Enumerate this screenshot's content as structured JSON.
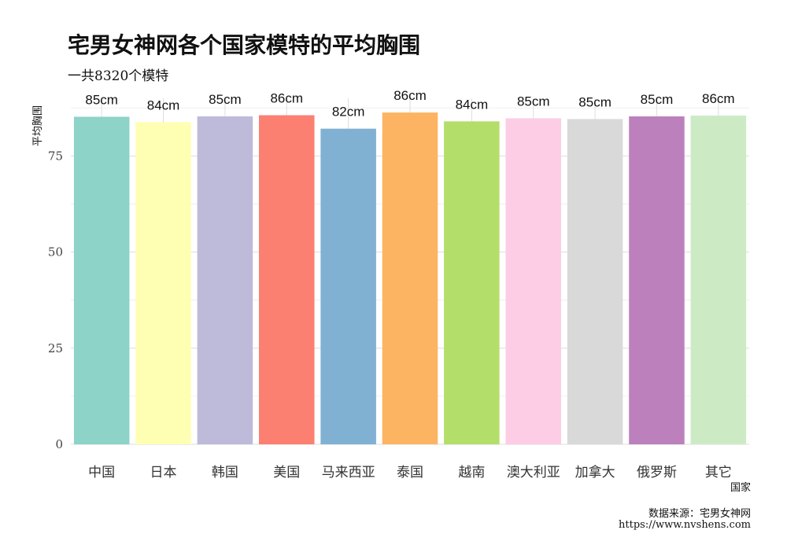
{
  "title": "宅男女神网各个国家模特的平均胸围",
  "subtitle": "一共8320个模特",
  "caption": {
    "line1": "数据来源：宅男女神网",
    "line2": "https://www.nvshens.com"
  },
  "chart_data": {
    "type": "bar",
    "title": "宅男女神网各个国家模特的平均胸围",
    "subtitle": "一共8320个模特",
    "xlabel": "国家",
    "ylabel": "平均胸围",
    "categories": [
      "中国",
      "日本",
      "韩国",
      "美国",
      "马来西亚",
      "泰国",
      "越南",
      "澳大利亚",
      "加拿大",
      "俄罗斯",
      "其它"
    ],
    "values": [
      85.2,
      83.8,
      85.3,
      85.6,
      82.1,
      86.3,
      84.0,
      84.8,
      84.6,
      85.3,
      85.5
    ],
    "data_labels": [
      "85cm",
      "84cm",
      "85cm",
      "86cm",
      "82cm",
      "86cm",
      "84cm",
      "85cm",
      "85cm",
      "85cm",
      "86cm"
    ],
    "colors": [
      "#8DD3C7",
      "#FFFFB3",
      "#BEBADA",
      "#FB8072",
      "#80B1D3",
      "#FDB462",
      "#B3DE69",
      "#FCCDE5",
      "#D9D9D9",
      "#BC80BD",
      "#CCEBC5"
    ],
    "yticks": [
      0,
      25,
      50,
      75
    ],
    "ylim": [
      0,
      90
    ],
    "grid": true,
    "legend": "none"
  }
}
